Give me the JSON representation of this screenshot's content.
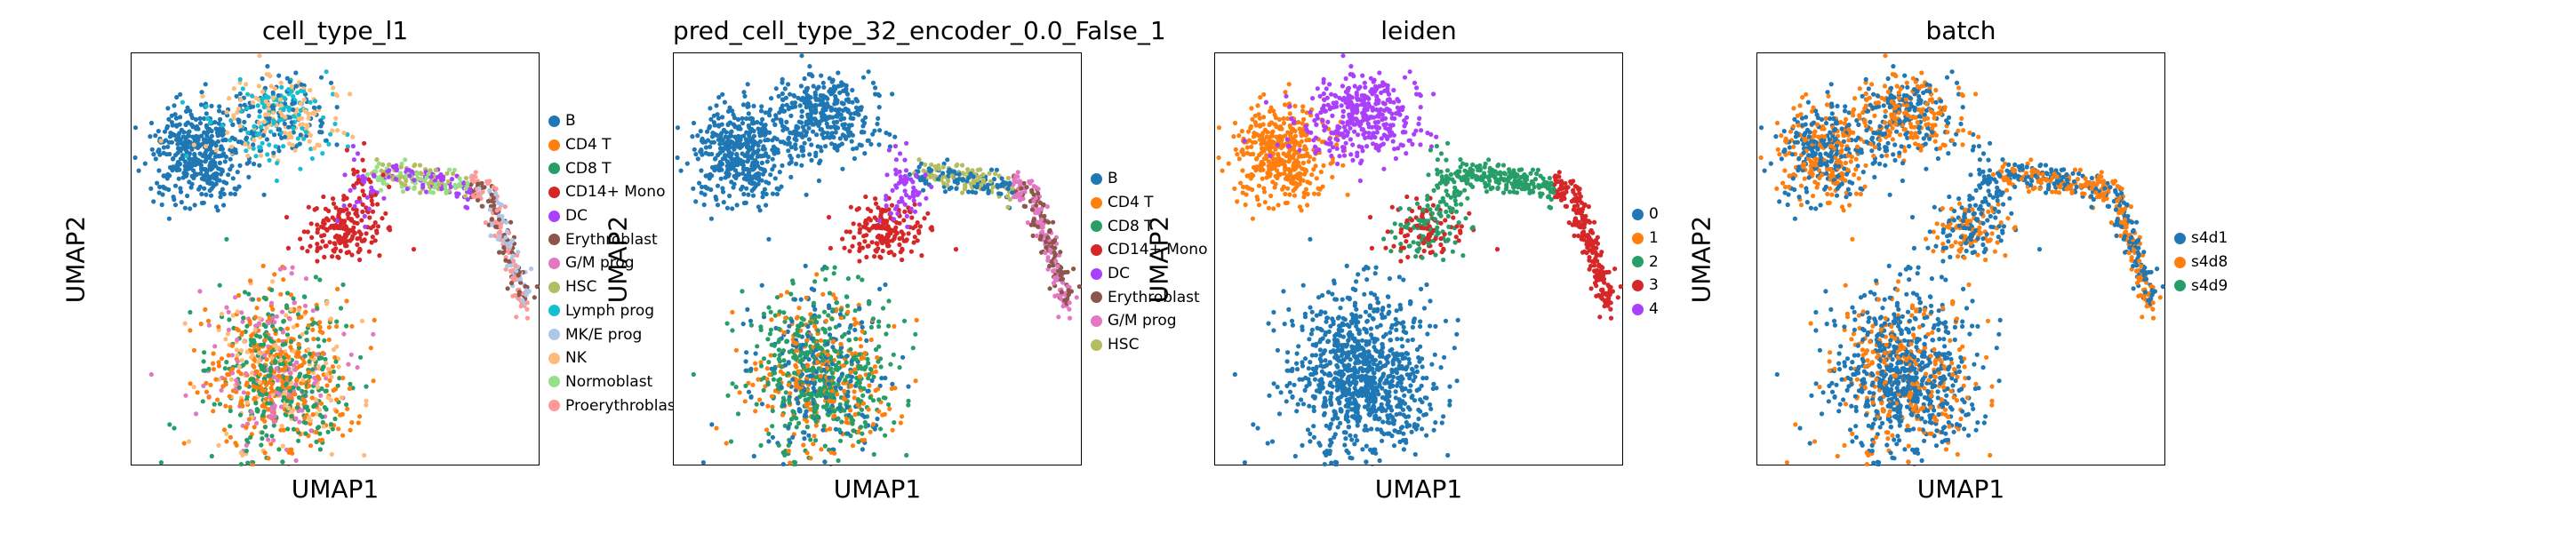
{
  "chart_data": [
    {
      "type": "scatter",
      "title": "cell_type_l1",
      "xlabel": "UMAP1",
      "ylabel": "UMAP2",
      "colored_by": "cell type",
      "legend_placement": "right",
      "ticks": "none",
      "series": [
        {
          "name": "B",
          "color": "#1f77b4"
        },
        {
          "name": "CD4 T",
          "color": "#ff7f0e"
        },
        {
          "name": "CD8 T",
          "color": "#279e68"
        },
        {
          "name": "CD14+ Mono",
          "color": "#d62728"
        },
        {
          "name": "DC",
          "color": "#aa40fc"
        },
        {
          "name": "Erythroblast",
          "color": "#8c564b"
        },
        {
          "name": "G/M prog",
          "color": "#e377c2"
        },
        {
          "name": "HSC",
          "color": "#b5bd61"
        },
        {
          "name": "Lymph prog",
          "color": "#17becf"
        },
        {
          "name": "MK/E prog",
          "color": "#aec7e8"
        },
        {
          "name": "NK",
          "color": "#ffbb78"
        },
        {
          "name": "Normoblast",
          "color": "#98df8a"
        },
        {
          "name": "Proerythroblast",
          "color": "#ff9896"
        }
      ]
    },
    {
      "type": "scatter",
      "title": "pred_cell_type_32_encoder_0.0_False_1",
      "xlabel": "UMAP1",
      "ylabel": "UMAP2",
      "colored_by": "predicted cell type",
      "legend_placement": "right",
      "ticks": "none",
      "series": [
        {
          "name": "B",
          "color": "#1f77b4"
        },
        {
          "name": "CD4 T",
          "color": "#ff7f0e"
        },
        {
          "name": "CD8 T",
          "color": "#279e68"
        },
        {
          "name": "CD14+ Mono",
          "color": "#d62728"
        },
        {
          "name": "DC",
          "color": "#aa40fc"
        },
        {
          "name": "Erythroblast",
          "color": "#8c564b"
        },
        {
          "name": "G/M prog",
          "color": "#e377c2"
        },
        {
          "name": "HSC",
          "color": "#b5bd61"
        }
      ]
    },
    {
      "type": "scatter",
      "title": "leiden",
      "xlabel": "UMAP1",
      "ylabel": "UMAP2",
      "colored_by": "leiden cluster",
      "legend_placement": "right",
      "ticks": "none",
      "series": [
        {
          "name": "0",
          "color": "#1f77b4"
        },
        {
          "name": "1",
          "color": "#ff7f0e"
        },
        {
          "name": "2",
          "color": "#279e68"
        },
        {
          "name": "3",
          "color": "#d62728"
        },
        {
          "name": "4",
          "color": "#aa40fc"
        }
      ]
    },
    {
      "type": "scatter",
      "title": "batch",
      "xlabel": "UMAP1",
      "ylabel": "UMAP2",
      "colored_by": "batch",
      "legend_placement": "right",
      "ticks": "none",
      "series": [
        {
          "name": "s4d1",
          "color": "#1f77b4"
        },
        {
          "name": "s4d8",
          "color": "#ff7f0e"
        },
        {
          "name": "s4d9",
          "color": "#279e68"
        }
      ]
    }
  ]
}
